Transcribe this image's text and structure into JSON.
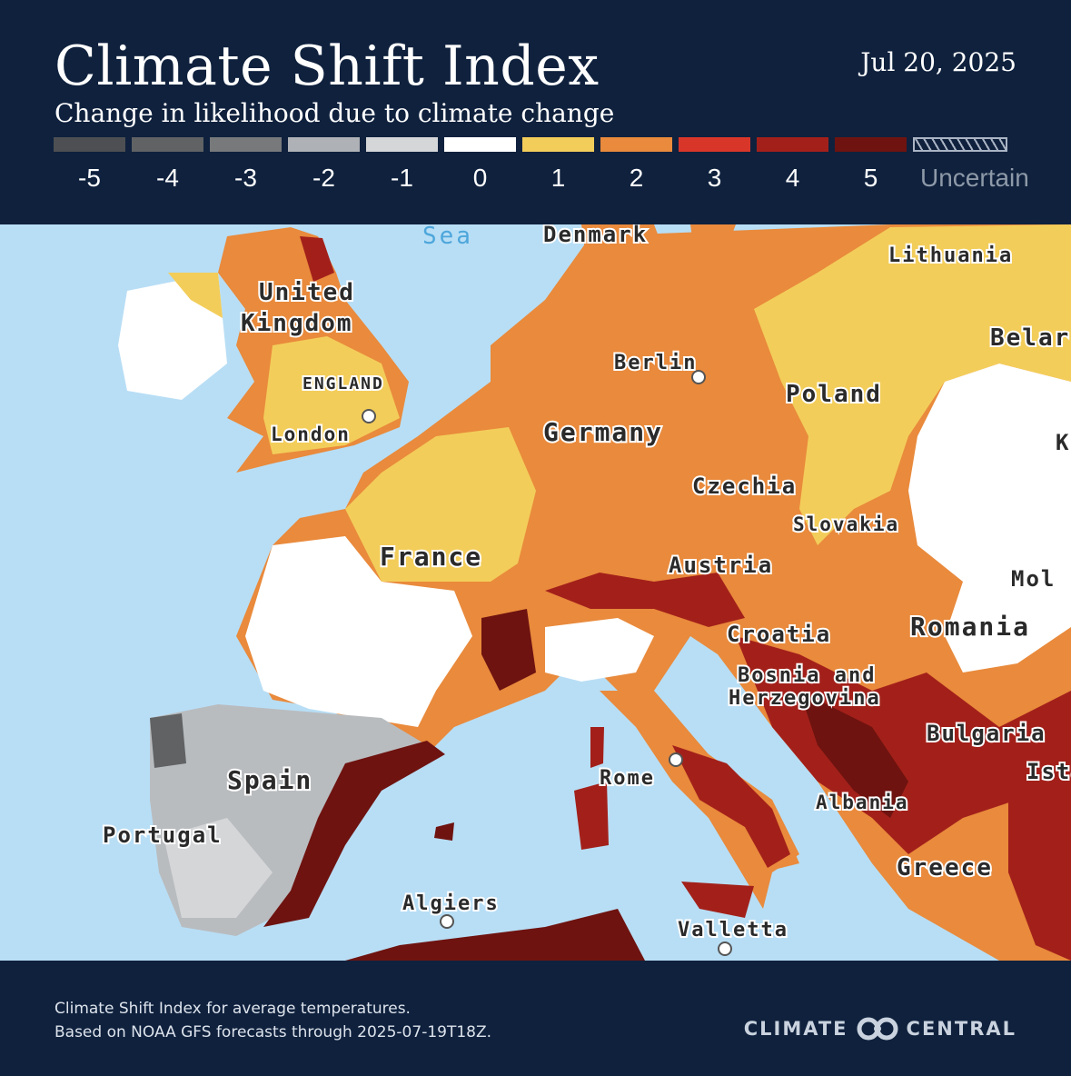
{
  "header": {
    "title": "Climate Shift Index",
    "subtitle": "Change in likelihood due to climate change",
    "date": "Jul 20, 2025"
  },
  "legend": [
    {
      "label": "-5",
      "color": "#4d4f52"
    },
    {
      "label": "-4",
      "color": "#606264"
    },
    {
      "label": "-3",
      "color": "#77797b"
    },
    {
      "label": "-2",
      "color": "#aeb1b5"
    },
    {
      "label": "-1",
      "color": "#d5d6d8"
    },
    {
      "label": "0",
      "color": "#ffffff"
    },
    {
      "label": "1",
      "color": "#f3cd5a"
    },
    {
      "label": "2",
      "color": "#e98a3c"
    },
    {
      "label": "3",
      "color": "#d9362a"
    },
    {
      "label": "4",
      "color": "#a3201a"
    },
    {
      "label": "5",
      "color": "#6e1310"
    },
    {
      "label": "Uncertain",
      "color": "hatched"
    }
  ],
  "map": {
    "sea_color": "#b8def5",
    "labels": {
      "sea": "Sea",
      "denmark": "Denmark",
      "lithuania": "Lithuania",
      "uk1": "United",
      "uk2": "Kingdom",
      "belarus": "Belar",
      "england": "ENGLAND",
      "berlin": "Berlin",
      "poland": "Poland",
      "london": "London",
      "germany": "Germany",
      "k": "K",
      "czechia": "Czechia",
      "slovakia": "Slovakia",
      "france": "France",
      "austria": "Austria",
      "moldova": "Mol",
      "croatia": "Croatia",
      "romania": "Romania",
      "bosnia1": "Bosnia and",
      "bosnia2": "Herzegovina",
      "bulgaria": "Bulgaria",
      "rome": "Rome",
      "istanbul": "Ista",
      "spain": "Spain",
      "albania": "Albania",
      "portugal": "Portugal",
      "greece": "Greece",
      "algiers": "Algiers",
      "valletta": "Valletta"
    }
  },
  "footer": {
    "line1": "Climate Shift Index for average temperatures.",
    "line2": "Based on NOAA GFS forecasts through 2025-07-19T18Z.",
    "logo_left": "CLIMATE",
    "logo_right": "CENTRAL"
  }
}
